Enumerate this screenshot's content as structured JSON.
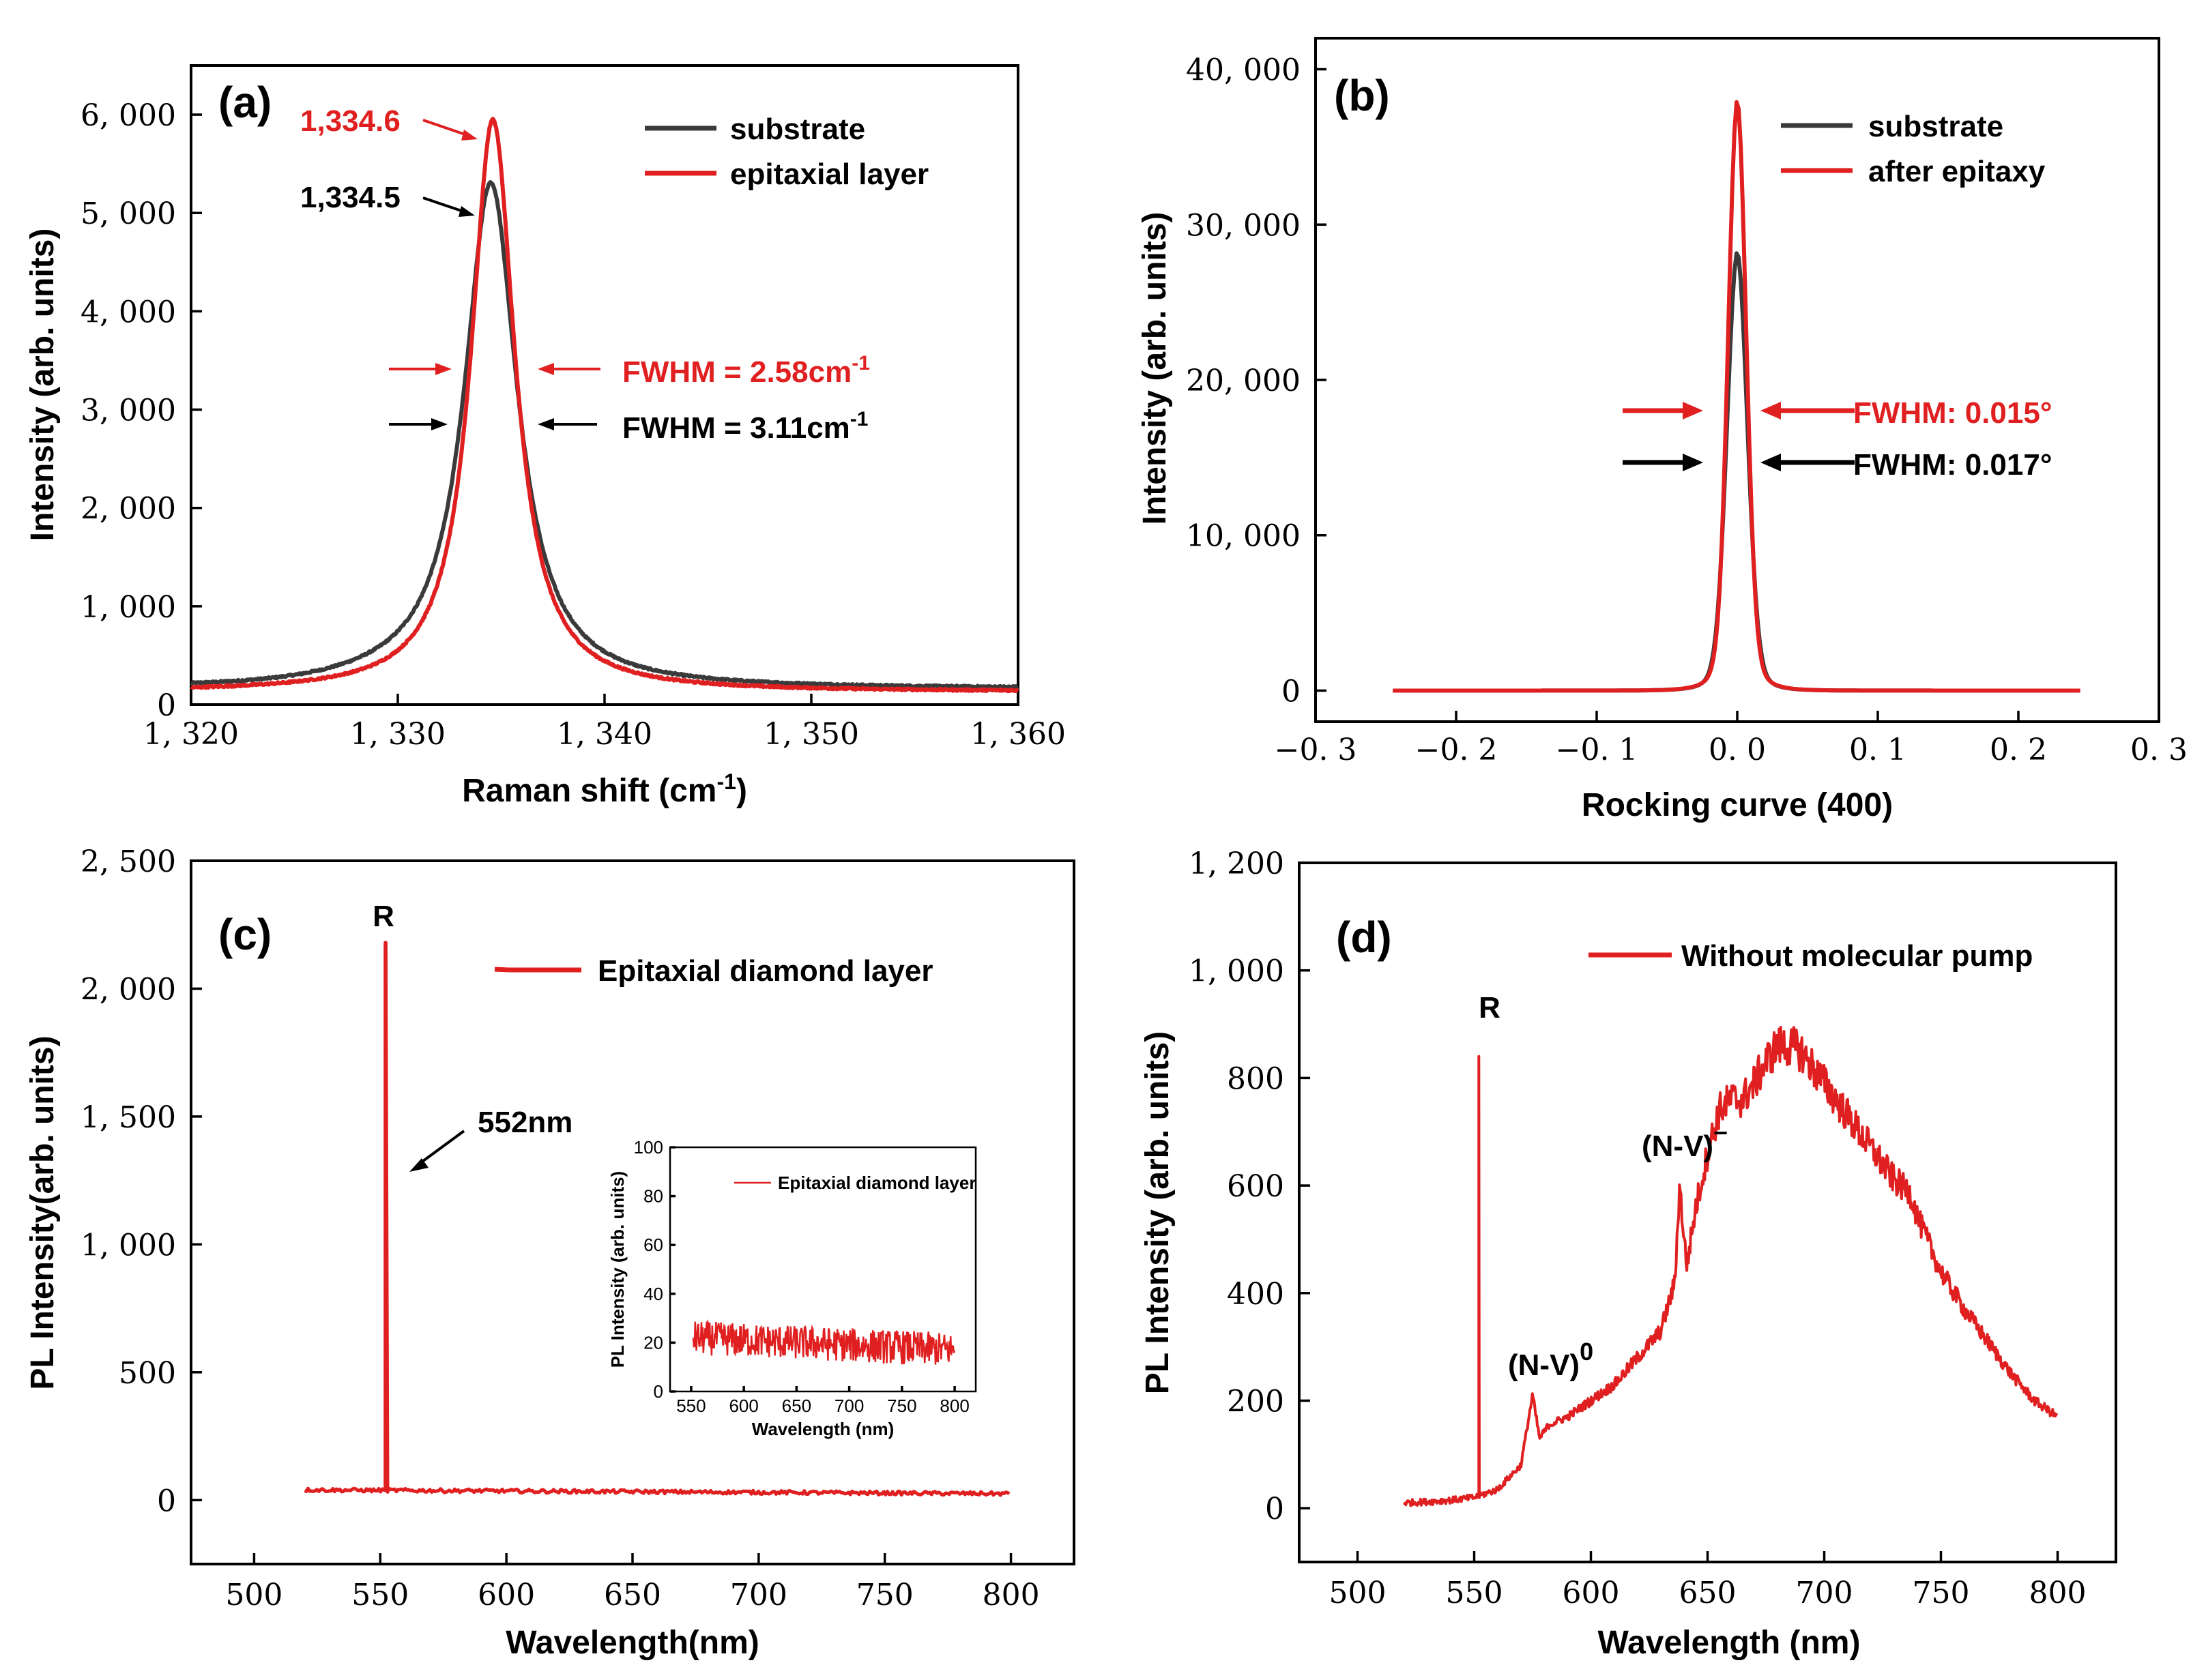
{
  "colors": {
    "black_series": "#3a3a3a",
    "red_series": "#e02020"
  },
  "chart_data": [
    {
      "panel": "(a)",
      "type": "line",
      "xlabel": "Raman shift (cm-1)",
      "xlabel_main": "Raman shift (cm",
      "xlabel_sup": "-1",
      "xlabel_end": ")",
      "ylabel": "Intensity (arb. units)",
      "xlim": [
        1320,
        1360
      ],
      "ylim": [
        0,
        6500
      ],
      "xticks": [
        1320,
        1330,
        1340,
        1350,
        1360
      ],
      "xtick_labels": [
        "1, 320",
        "1, 330",
        "1, 340",
        "1, 350",
        "1, 360"
      ],
      "yticks": [
        0,
        1000,
        2000,
        3000,
        4000,
        5000,
        6000
      ],
      "ytick_labels": [
        "0",
        "1, 000",
        "2, 000",
        "3, 000",
        "4, 000",
        "5, 000",
        "6, 000"
      ],
      "series": [
        {
          "name": "substrate",
          "color": "#3a3a3a",
          "peak_x": 1334.5,
          "peak_y": 5300,
          "fwhm": 3.11,
          "baseline": 160
        },
        {
          "name": "epitaxial layer",
          "color": "#e02020",
          "peak_x": 1334.6,
          "peak_y": 5950,
          "fwhm": 2.58,
          "baseline": 130
        }
      ],
      "annotations": {
        "red_peak": "1,334.6",
        "black_peak": "1,334.5",
        "red_fwhm_main": "FWHM = 2.58cm",
        "black_fwhm_main": "FWHM = 3.11cm",
        "fwhm_sup": "-1"
      }
    },
    {
      "panel": "(b)",
      "type": "line",
      "xlabel": "Rocking curve (400)",
      "ylabel": "Intensity (arb. units)",
      "xlim": [
        -0.3,
        0.3
      ],
      "ylim": [
        -2000,
        42000
      ],
      "xticks": [
        -0.3,
        -0.2,
        -0.1,
        0.0,
        0.1,
        0.2,
        0.3
      ],
      "xtick_labels": [
        "−0. 3",
        "−0. 2",
        "−0. 1",
        "0. 0",
        "0. 1",
        "0. 2",
        "0. 3"
      ],
      "yticks": [
        0,
        10000,
        20000,
        30000,
        40000
      ],
      "ytick_labels": [
        "0",
        "10, 000",
        "20, 000",
        "30, 000",
        "40, 000"
      ],
      "series": [
        {
          "name": "substrate",
          "color": "#3a3a3a",
          "peak_x": 0.0,
          "peak_y": 28300,
          "fwhm": 0.017
        },
        {
          "name": "after epitaxy",
          "color": "#e02020",
          "peak_x": 0.0,
          "peak_y": 38100,
          "fwhm": 0.015
        }
      ],
      "annotations": {
        "red_fwhm": "FWHM: 0.015°",
        "black_fwhm": "FWHM: 0.017°"
      }
    },
    {
      "panel": "(c)",
      "type": "line",
      "xlabel": "Wavelength(nm)",
      "ylabel": "PL Intensity(arb. units)",
      "xlim": [
        475,
        825
      ],
      "ylim": [
        -250,
        2500
      ],
      "xticks": [
        500,
        550,
        600,
        650,
        700,
        750,
        800
      ],
      "xtick_labels": [
        "500",
        "550",
        "600",
        "650",
        "700",
        "750",
        "800"
      ],
      "yticks": [
        0,
        500,
        1000,
        1500,
        2000,
        2500
      ],
      "ytick_labels": [
        "0",
        "500",
        "1, 000",
        "1, 500",
        "2, 000",
        "2, 500"
      ],
      "series": [
        {
          "name": "Epitaxial diamond layer",
          "color": "#e02020",
          "baseline_start": 40,
          "baseline_end": 25,
          "spike_x": 552,
          "spike_y": 2180
        }
      ],
      "annotations": {
        "peak_label": "R",
        "wavelength_label": "552nm"
      },
      "inset": {
        "xlabel": "Wavelength (nm)",
        "ylabel": "PL Intensity (arb. units)",
        "legend": "Epitaxial diamond layer",
        "xlim": [
          530,
          820
        ],
        "ylim": [
          0,
          100
        ],
        "xticks": [
          550,
          600,
          650,
          700,
          750,
          800
        ],
        "xtick_labels": [
          "550",
          "600",
          "650",
          "700",
          "750",
          "800"
        ],
        "yticks": [
          0,
          20,
          40,
          60,
          80,
          100
        ],
        "ytick_labels": [
          "0",
          "20",
          "40",
          "60",
          "80",
          "100"
        ],
        "band_start": 22,
        "band_end": 17
      }
    },
    {
      "panel": "(d)",
      "type": "line",
      "xlabel": "Wavelength (nm)",
      "ylabel": "PL Intensity (arb. units)",
      "xlim": [
        475,
        825
      ],
      "ylim": [
        -100,
        1200
      ],
      "xticks": [
        500,
        550,
        600,
        650,
        700,
        750,
        800
      ],
      "xtick_labels": [
        "500",
        "550",
        "600",
        "650",
        "700",
        "750",
        "800"
      ],
      "yticks": [
        0,
        200,
        400,
        600,
        800,
        1000,
        1200
      ],
      "ytick_labels": [
        "0",
        "200",
        "400",
        "600",
        "800",
        "1, 000",
        "1, 200"
      ],
      "series": [
        {
          "name": "Without molecular pump",
          "color": "#e02020",
          "spike_x": 552,
          "spike_y": 840,
          "x": [
            520,
            530,
            540,
            550,
            560,
            570,
            575,
            578,
            582,
            590,
            600,
            610,
            620,
            630,
            636,
            638,
            641,
            645,
            650,
            655,
            660,
            665,
            670,
            675,
            680,
            685,
            690,
            695,
            700,
            710,
            720,
            730,
            737,
            740,
            750,
            760,
            770,
            780,
            790,
            800
          ],
          "y": [
            10,
            12,
            15,
            20,
            35,
            80,
            210,
            130,
            155,
            170,
            200,
            230,
            280,
            330,
            420,
            600,
            450,
            560,
            660,
            740,
            760,
            760,
            790,
            830,
            860,
            860,
            850,
            820,
            790,
            730,
            670,
            610,
            585,
            540,
            440,
            370,
            310,
            250,
            200,
            170
          ]
        }
      ],
      "annotations": {
        "peak_label": "R",
        "nv0_main": "(N-V)",
        "nv0_sup": "0",
        "nvm_main": "(N-V)",
        "nvm_sup": "−"
      }
    }
  ]
}
